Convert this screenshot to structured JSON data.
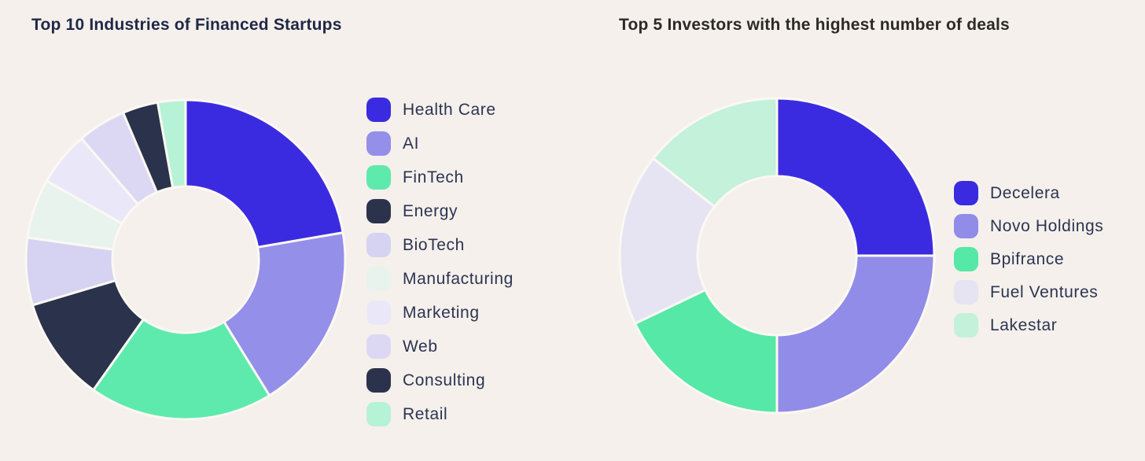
{
  "page": {
    "background": "#f5f0eb",
    "separator_color": "#fbf8f3",
    "legend_text_color": "#2b3452"
  },
  "chart_data": [
    {
      "type": "pie",
      "subtype": "donut",
      "title": "Top 10 Industries of Financed Startups",
      "title_color": "#1f2847",
      "categories": [
        "Health Care",
        "AI",
        "FinTech",
        "Energy",
        "BioTech",
        "Manufacturing",
        "Marketing",
        "Web",
        "Consulting",
        "Retail"
      ],
      "values_percent": [
        22.3,
        18.9,
        18.6,
        10.6,
        6.8,
        6.0,
        5.5,
        4.9,
        3.6,
        2.8
      ],
      "colors": [
        "#3b2be0",
        "#948fe9",
        "#5eeaad",
        "#2b324c",
        "#d6d2f1",
        "#e7f3ec",
        "#eae8f8",
        "#dcd8f4",
        "#2b324c",
        "#b6f2d6"
      ],
      "start_angle_deg": 0,
      "direction": "clockwise",
      "legend_position": "right",
      "inner_radius_ratio": 0.46,
      "grid": false
    },
    {
      "type": "pie",
      "subtype": "donut",
      "title": "Top 5 Investors with the highest number of deals",
      "title_color": "#2b2a28",
      "categories": [
        "Decelera",
        "Novo Holdings",
        "Bpifrance",
        "Fuel Ventures",
        "Lakestar"
      ],
      "values_percent": [
        25.0,
        25.0,
        17.9,
        17.7,
        14.4
      ],
      "colors": [
        "#3b2be0",
        "#918ce8",
        "#55e8a6",
        "#e6e4f2",
        "#c3f1da"
      ],
      "start_angle_deg": 0,
      "direction": "clockwise",
      "legend_position": "right",
      "inner_radius_ratio": 0.5,
      "grid": false
    }
  ]
}
